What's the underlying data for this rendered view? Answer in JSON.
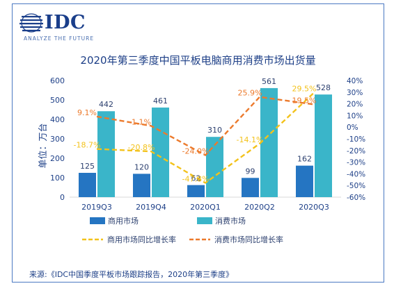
{
  "logo": {
    "brand": "IDC",
    "tagline": "ANALYZE THE FUTURE"
  },
  "source": "来源:《IDC中国季度平板市场跟踪报告，2020年第三季度》",
  "colors": {
    "commercial_bar": "#2575c2",
    "consumer_bar": "#3ab5c9",
    "commercial_line": "#f3c21b",
    "consumer_line": "#ec7a2c",
    "text": "#1d3f87",
    "grid": "#d9d9d9"
  },
  "chart_data": {
    "type": "bar",
    "title": "2020年第三季度中国平板电脑商用消费市场出货量",
    "ylabel": "单位：万台",
    "ylim": [
      0,
      600
    ],
    "yticks": [
      0,
      100,
      200,
      300,
      400,
      500,
      600
    ],
    "y2lim": [
      -60,
      40
    ],
    "y2ticks": [
      "40%",
      "30%",
      "20%",
      "10%",
      "0%",
      "-10%",
      "-20%",
      "-30%",
      "-40%",
      "-50%",
      "-60%"
    ],
    "categories": [
      "2019Q3",
      "2019Q4",
      "2020Q1",
      "2020Q2",
      "2020Q3"
    ],
    "series": [
      {
        "name": "商用市场",
        "kind": "bar",
        "axis": "left",
        "values": [
          125,
          120,
          62,
          99,
          162
        ],
        "labels": [
          "125",
          "120",
          "62",
          "99",
          "162"
        ]
      },
      {
        "name": "消费市场",
        "kind": "bar",
        "axis": "left",
        "values": [
          442,
          461,
          310,
          561,
          528
        ],
        "labels": [
          "442",
          "461",
          "310",
          "561",
          "528"
        ]
      },
      {
        "name": "商用市场同比增长率",
        "kind": "line",
        "axis": "right",
        "values": [
          -18.7,
          -20.8,
          -47.8,
          -14.1,
          29.5
        ],
        "labels": [
          "-18.7%",
          "-20.8%",
          "-47.8%",
          "-14.1%",
          "29.5%"
        ]
      },
      {
        "name": "消费市场同比增长率",
        "kind": "line",
        "axis": "right",
        "values": [
          9.1,
          1.1,
          -24.0,
          25.9,
          19.5
        ],
        "labels": [
          "9.1%",
          "1.1%",
          "-24.0%",
          "25.9%",
          "19.5%"
        ]
      }
    ],
    "legend": "bottom"
  }
}
